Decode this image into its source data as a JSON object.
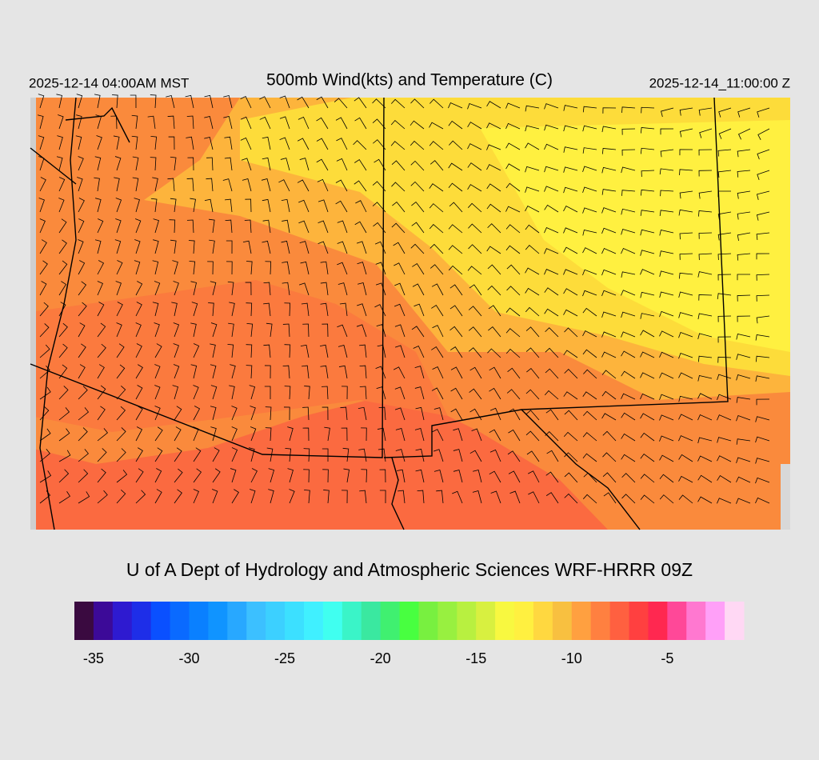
{
  "header": {
    "left": "2025-12-14 04:00AM MST",
    "title": "500mb Wind(kts) and Temperature (C)",
    "right": "2025-12-14_11:00:00 Z"
  },
  "credit": "U of A Dept of Hydrology and Atmospheric Sciences WRF-HRRR 09Z",
  "colorbar": {
    "range": [
      -36,
      -1
    ],
    "ticks": [
      -35,
      -30,
      -25,
      -20,
      -15,
      -10,
      -5
    ],
    "colors": [
      "#3a0a40",
      "#3c0a98",
      "#2e1ad0",
      "#1e2ee8",
      "#0a50ff",
      "#0a6aff",
      "#0a80ff",
      "#1094ff",
      "#28a8ff",
      "#3cc0ff",
      "#3cd0ff",
      "#3ce0ff",
      "#40f0ff",
      "#40fff0",
      "#3af4c8",
      "#3ae8a0",
      "#40f070",
      "#48ff40",
      "#78f040",
      "#98f040",
      "#b8f040",
      "#d8f040",
      "#f8f840",
      "#fff040",
      "#ffd840",
      "#f8c040",
      "#ffa040",
      "#ff8040",
      "#ff6040",
      "#ff4040",
      "#ff2850",
      "#ff4898",
      "#ff78d0",
      "#ffa0f8",
      "#ffd8f4"
    ]
  }
}
